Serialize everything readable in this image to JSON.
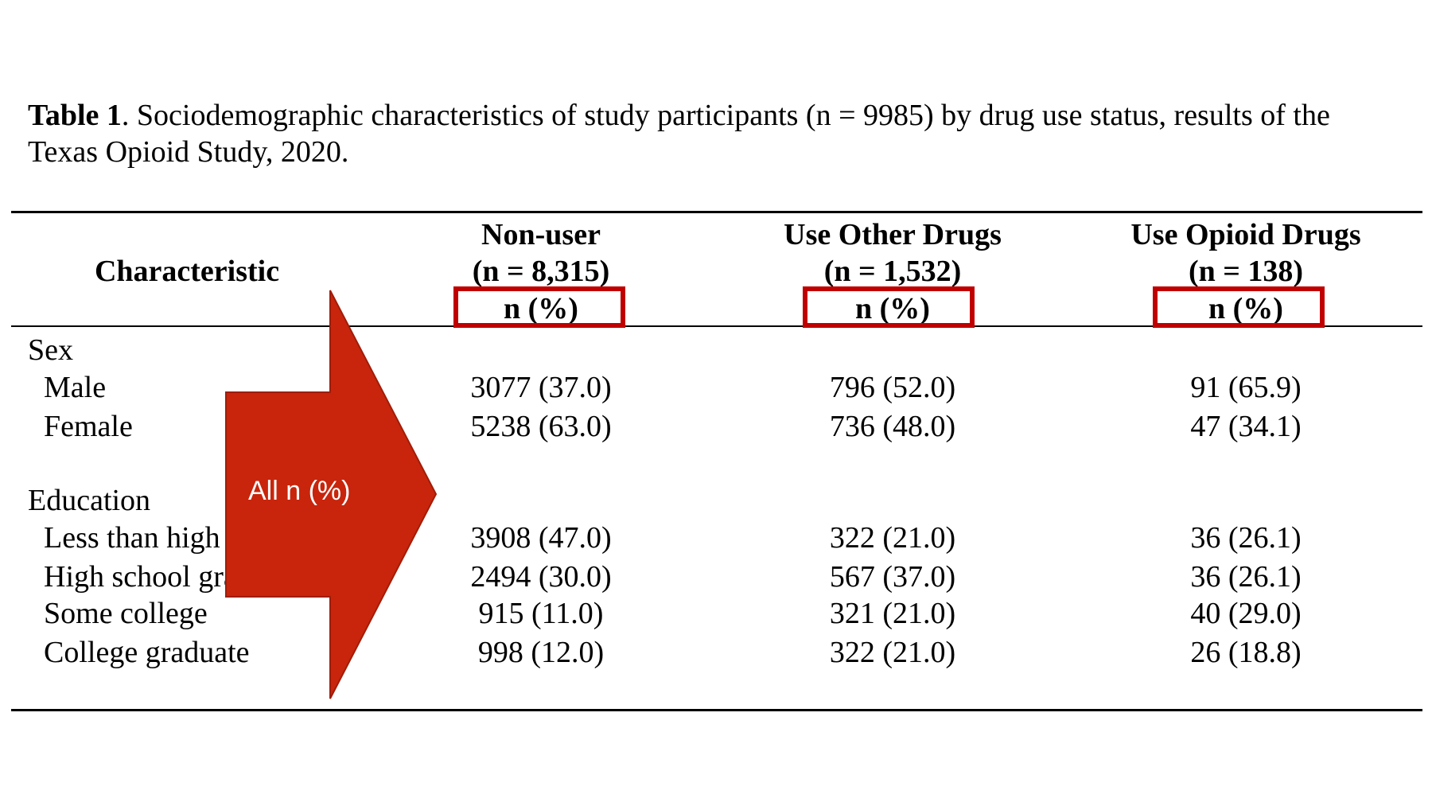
{
  "caption": {
    "label": "Table 1",
    "text": ". Sociodemographic characteristics of study participants (n = 9985) by drug use status, results of the Texas Opioid Study, 2020."
  },
  "table": {
    "characteristic_header": "Characteristic",
    "columns": [
      {
        "name": "Non-user",
        "n": "(n = 8,315)",
        "unit": "n (%)"
      },
      {
        "name": "Use Other Drugs",
        "n": "(n = 1,532)",
        "unit": "n (%)"
      },
      {
        "name": "Use Opioid Drugs",
        "n": "(n = 138)",
        "unit": "n (%)"
      }
    ],
    "sections": {
      "sex": {
        "title": "Sex",
        "rows": [
          {
            "label": "Male",
            "values": [
              "3077 (37.0)",
              "796 (52.0)",
              "91 (65.9)"
            ]
          },
          {
            "label": "Female",
            "values": [
              "5238 (63.0)",
              "736 (48.0)",
              "47 (34.1)"
            ]
          }
        ]
      },
      "education": {
        "title": "Education",
        "rows": [
          {
            "label": "Less than high school",
            "values": [
              "3908 (47.0)",
              "322 (21.0)",
              "36 (26.1)"
            ]
          },
          {
            "label": "High school graduate",
            "values": [
              "2494 (30.0)",
              "567 (37.0)",
              "36 (26.1)"
            ]
          },
          {
            "label": "Some college",
            "values": [
              "915 (11.0)",
              "321 (21.0)",
              "40 (29.0)"
            ]
          },
          {
            "label": "College graduate",
            "values": [
              "998 (12.0)",
              "322 (21.0)",
              "26 (18.8)"
            ]
          }
        ]
      }
    }
  },
  "annotation": {
    "arrow_label": "All n (%)",
    "color": "#c8250c",
    "box_color": "#c00000"
  }
}
